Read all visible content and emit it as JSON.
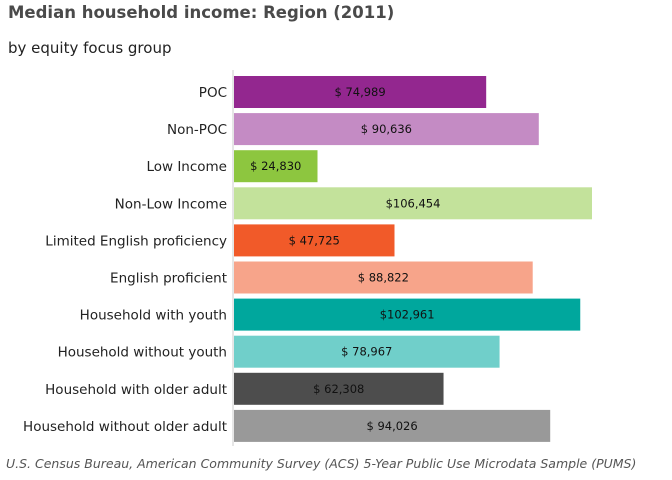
{
  "title": "Median household income: Region (2011)",
  "subtitle": "by equity focus group",
  "caption": "U.S. Census Bureau, American Community Survey (ACS) 5-Year Public Use Microdata Sample (PUMS)",
  "chart_data": {
    "type": "bar",
    "orientation": "horizontal",
    "title": "Median household income: Region (2011)",
    "subtitle": "by equity focus group",
    "xlabel": "",
    "ylabel": "",
    "xlim": [
      0,
      110000
    ],
    "grid": false,
    "legend": "none",
    "categories": [
      "POC",
      "Non-POC",
      "Low Income",
      "Non-Low Income",
      "Limited English proficiency",
      "English proficient",
      "Household with youth",
      "Household without youth",
      "Household with older adult",
      "Household without older adult"
    ],
    "values": [
      74989,
      90636,
      24830,
      106454,
      47725,
      88822,
      102961,
      78967,
      62308,
      94026
    ],
    "value_labels": [
      "$ 74,989",
      "$ 90,636",
      "$ 24,830",
      "$106,454",
      "$ 47,725",
      "$ 88,822",
      "$102,961",
      "$ 78,967",
      "$ 62,308",
      "$ 94,026"
    ],
    "colors": [
      "#93278f",
      "#c48bc4",
      "#8dc63f",
      "#c3e29b",
      "#f15a29",
      "#f7a48a",
      "#00a79d",
      "#70cfca",
      "#4d4d4d",
      "#999999"
    ]
  }
}
